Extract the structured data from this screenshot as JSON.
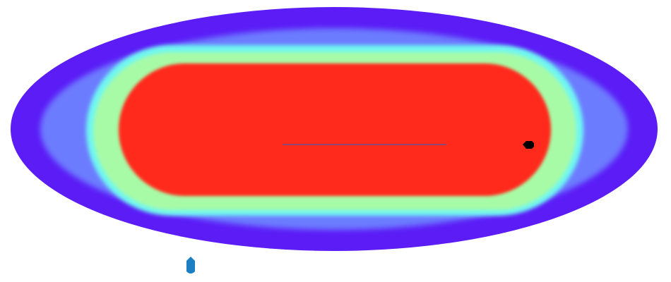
{
  "scene": {
    "type": "heat-zone-track",
    "zone_colors": {
      "outer_ring": "#5B1CF6",
      "mid_ring": "#6C7BFF",
      "transition_ring": "#6FF7F2",
      "inner_ring": "#A8FBA6",
      "core": "#FF2A1A"
    },
    "line_color": "#6A4F8C",
    "player_marker": {
      "icon": "black-blob-marker",
      "color": "#000000"
    },
    "pin_marker": {
      "icon": "blue-pin-marker",
      "color": "#1C7FC4"
    }
  }
}
